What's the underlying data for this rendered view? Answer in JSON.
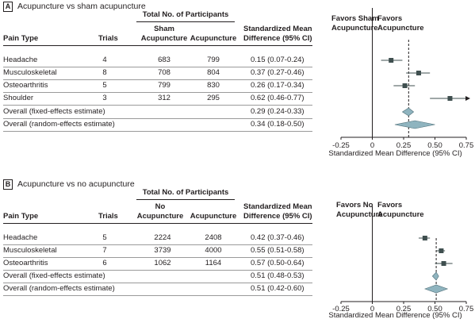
{
  "panels": [
    {
      "letter": "A",
      "title": "Acupuncture vs sham acupuncture",
      "headers": {
        "group": "Total No. of Participants",
        "pain_type": "Pain Type",
        "trials": "Trials",
        "control_l1": "Sham",
        "control_l2": "Acupuncture",
        "treatment": "Acupuncture",
        "smd_l1": "Standardized Mean",
        "smd_l2": "Difference (95% CI)",
        "favors_left_l1": "Favors Sham",
        "favors_left_l2": "Acupuncture",
        "favors_right_l1": "Favors",
        "favors_right_l2": "Acupuncture"
      },
      "rows": [
        {
          "label": "Headache",
          "trials": "4",
          "control": "683",
          "treatment": "799",
          "ci_text": "0.15 (0.07-0.24)"
        },
        {
          "label": "Musculoskeletal",
          "trials": "8",
          "control": "708",
          "treatment": "804",
          "ci_text": "0.37 (0.27-0.46)"
        },
        {
          "label": "Osteoarthritis",
          "trials": "5",
          "control": "799",
          "treatment": "830",
          "ci_text": "0.26 (0.17-0.34)"
        },
        {
          "label": "Shoulder",
          "trials": "3",
          "control": "312",
          "treatment": "295",
          "ci_text": "0.62 (0.46-0.77)"
        },
        {
          "label": "Overall (fixed-effects estimate)",
          "trials": "",
          "control": "",
          "treatment": "",
          "ci_text": "0.29 (0.24-0.33)"
        },
        {
          "label": "Overall (random-effects estimate)",
          "trials": "",
          "control": "",
          "treatment": "",
          "ci_text": "0.34 (0.18-0.50)"
        }
      ],
      "axis_label": "Standardized Mean Difference (95% CI)"
    },
    {
      "letter": "B",
      "title": "Acupuncture vs no acupuncture",
      "headers": {
        "group": "Total No. of Participants",
        "pain_type": "Pain Type",
        "trials": "Trials",
        "control_l1": "No",
        "control_l2": "Acupuncture",
        "treatment": "Acupuncture",
        "smd_l1": "Standardized Mean",
        "smd_l2": "Difference (95% CI)",
        "favors_left_l1": "Favors No",
        "favors_left_l2": "Acupuncture",
        "favors_right_l1": "Favors",
        "favors_right_l2": "Acupuncture"
      },
      "rows": [
        {
          "label": "Headache",
          "trials": "5",
          "control": "2224",
          "treatment": "2408",
          "ci_text": "0.42 (0.37-0.46)"
        },
        {
          "label": "Musculoskeletal",
          "trials": "7",
          "control": "3739",
          "treatment": "4000",
          "ci_text": "0.55 (0.51-0.58)"
        },
        {
          "label": "Osteoarthritis",
          "trials": "6",
          "control": "1062",
          "treatment": "1164",
          "ci_text": "0.57 (0.50-0.64)"
        },
        {
          "label": "Overall (fixed-effects estimate)",
          "trials": "",
          "control": "",
          "treatment": "",
          "ci_text": "0.51 (0.48-0.53)"
        },
        {
          "label": "Overall (random-effects estimate)",
          "trials": "",
          "control": "",
          "treatment": "",
          "ci_text": "0.51 (0.42-0.60)"
        }
      ],
      "axis_label": "Standardized Mean Difference (95% CI)"
    }
  ],
  "chart_data": [
    {
      "type": "forest",
      "title": "Acupuncture vs sham acupuncture",
      "xlabel": "Standardized Mean Difference (95% CI)",
      "xlim": [
        -0.25,
        0.75
      ],
      "xticks": [
        -0.25,
        0,
        0.25,
        0.5,
        0.75
      ],
      "xtick_labels": [
        "-0.25",
        "0",
        "0.25",
        "0.50",
        "0.75"
      ],
      "reference_line": 0.29,
      "studies": [
        {
          "label": "Headache",
          "estimate": 0.15,
          "lower": 0.07,
          "upper": 0.24,
          "kind": "study"
        },
        {
          "label": "Musculoskeletal",
          "estimate": 0.37,
          "lower": 0.27,
          "upper": 0.46,
          "kind": "study"
        },
        {
          "label": "Osteoarthritis",
          "estimate": 0.26,
          "lower": 0.17,
          "upper": 0.34,
          "kind": "study"
        },
        {
          "label": "Shoulder",
          "estimate": 0.62,
          "lower": 0.46,
          "upper": 0.77,
          "kind": "study"
        },
        {
          "label": "Overall (fixed-effects estimate)",
          "estimate": 0.29,
          "lower": 0.24,
          "upper": 0.33,
          "kind": "summary"
        },
        {
          "label": "Overall (random-effects estimate)",
          "estimate": 0.34,
          "lower": 0.18,
          "upper": 0.5,
          "kind": "summary"
        }
      ],
      "colors": {
        "marker": "#3f4f4f",
        "summary": "#8fb4bf"
      }
    },
    {
      "type": "forest",
      "title": "Acupuncture vs no acupuncture",
      "xlabel": "Standardized Mean Difference (95% CI)",
      "xlim": [
        -0.25,
        0.75
      ],
      "xticks": [
        -0.25,
        0,
        0.25,
        0.5,
        0.75
      ],
      "xtick_labels": [
        "-0.25",
        "0",
        "0.25",
        "0.50",
        "0.75"
      ],
      "reference_line": 0.51,
      "studies": [
        {
          "label": "Headache",
          "estimate": 0.42,
          "lower": 0.37,
          "upper": 0.46,
          "kind": "study"
        },
        {
          "label": "Musculoskeletal",
          "estimate": 0.55,
          "lower": 0.51,
          "upper": 0.58,
          "kind": "study"
        },
        {
          "label": "Osteoarthritis",
          "estimate": 0.57,
          "lower": 0.5,
          "upper": 0.64,
          "kind": "study"
        },
        {
          "label": "Overall (fixed-effects estimate)",
          "estimate": 0.51,
          "lower": 0.48,
          "upper": 0.53,
          "kind": "summary"
        },
        {
          "label": "Overall (random-effects estimate)",
          "estimate": 0.51,
          "lower": 0.42,
          "upper": 0.6,
          "kind": "summary"
        }
      ],
      "colors": {
        "marker": "#3f4f4f",
        "summary": "#8fb4bf"
      }
    }
  ]
}
